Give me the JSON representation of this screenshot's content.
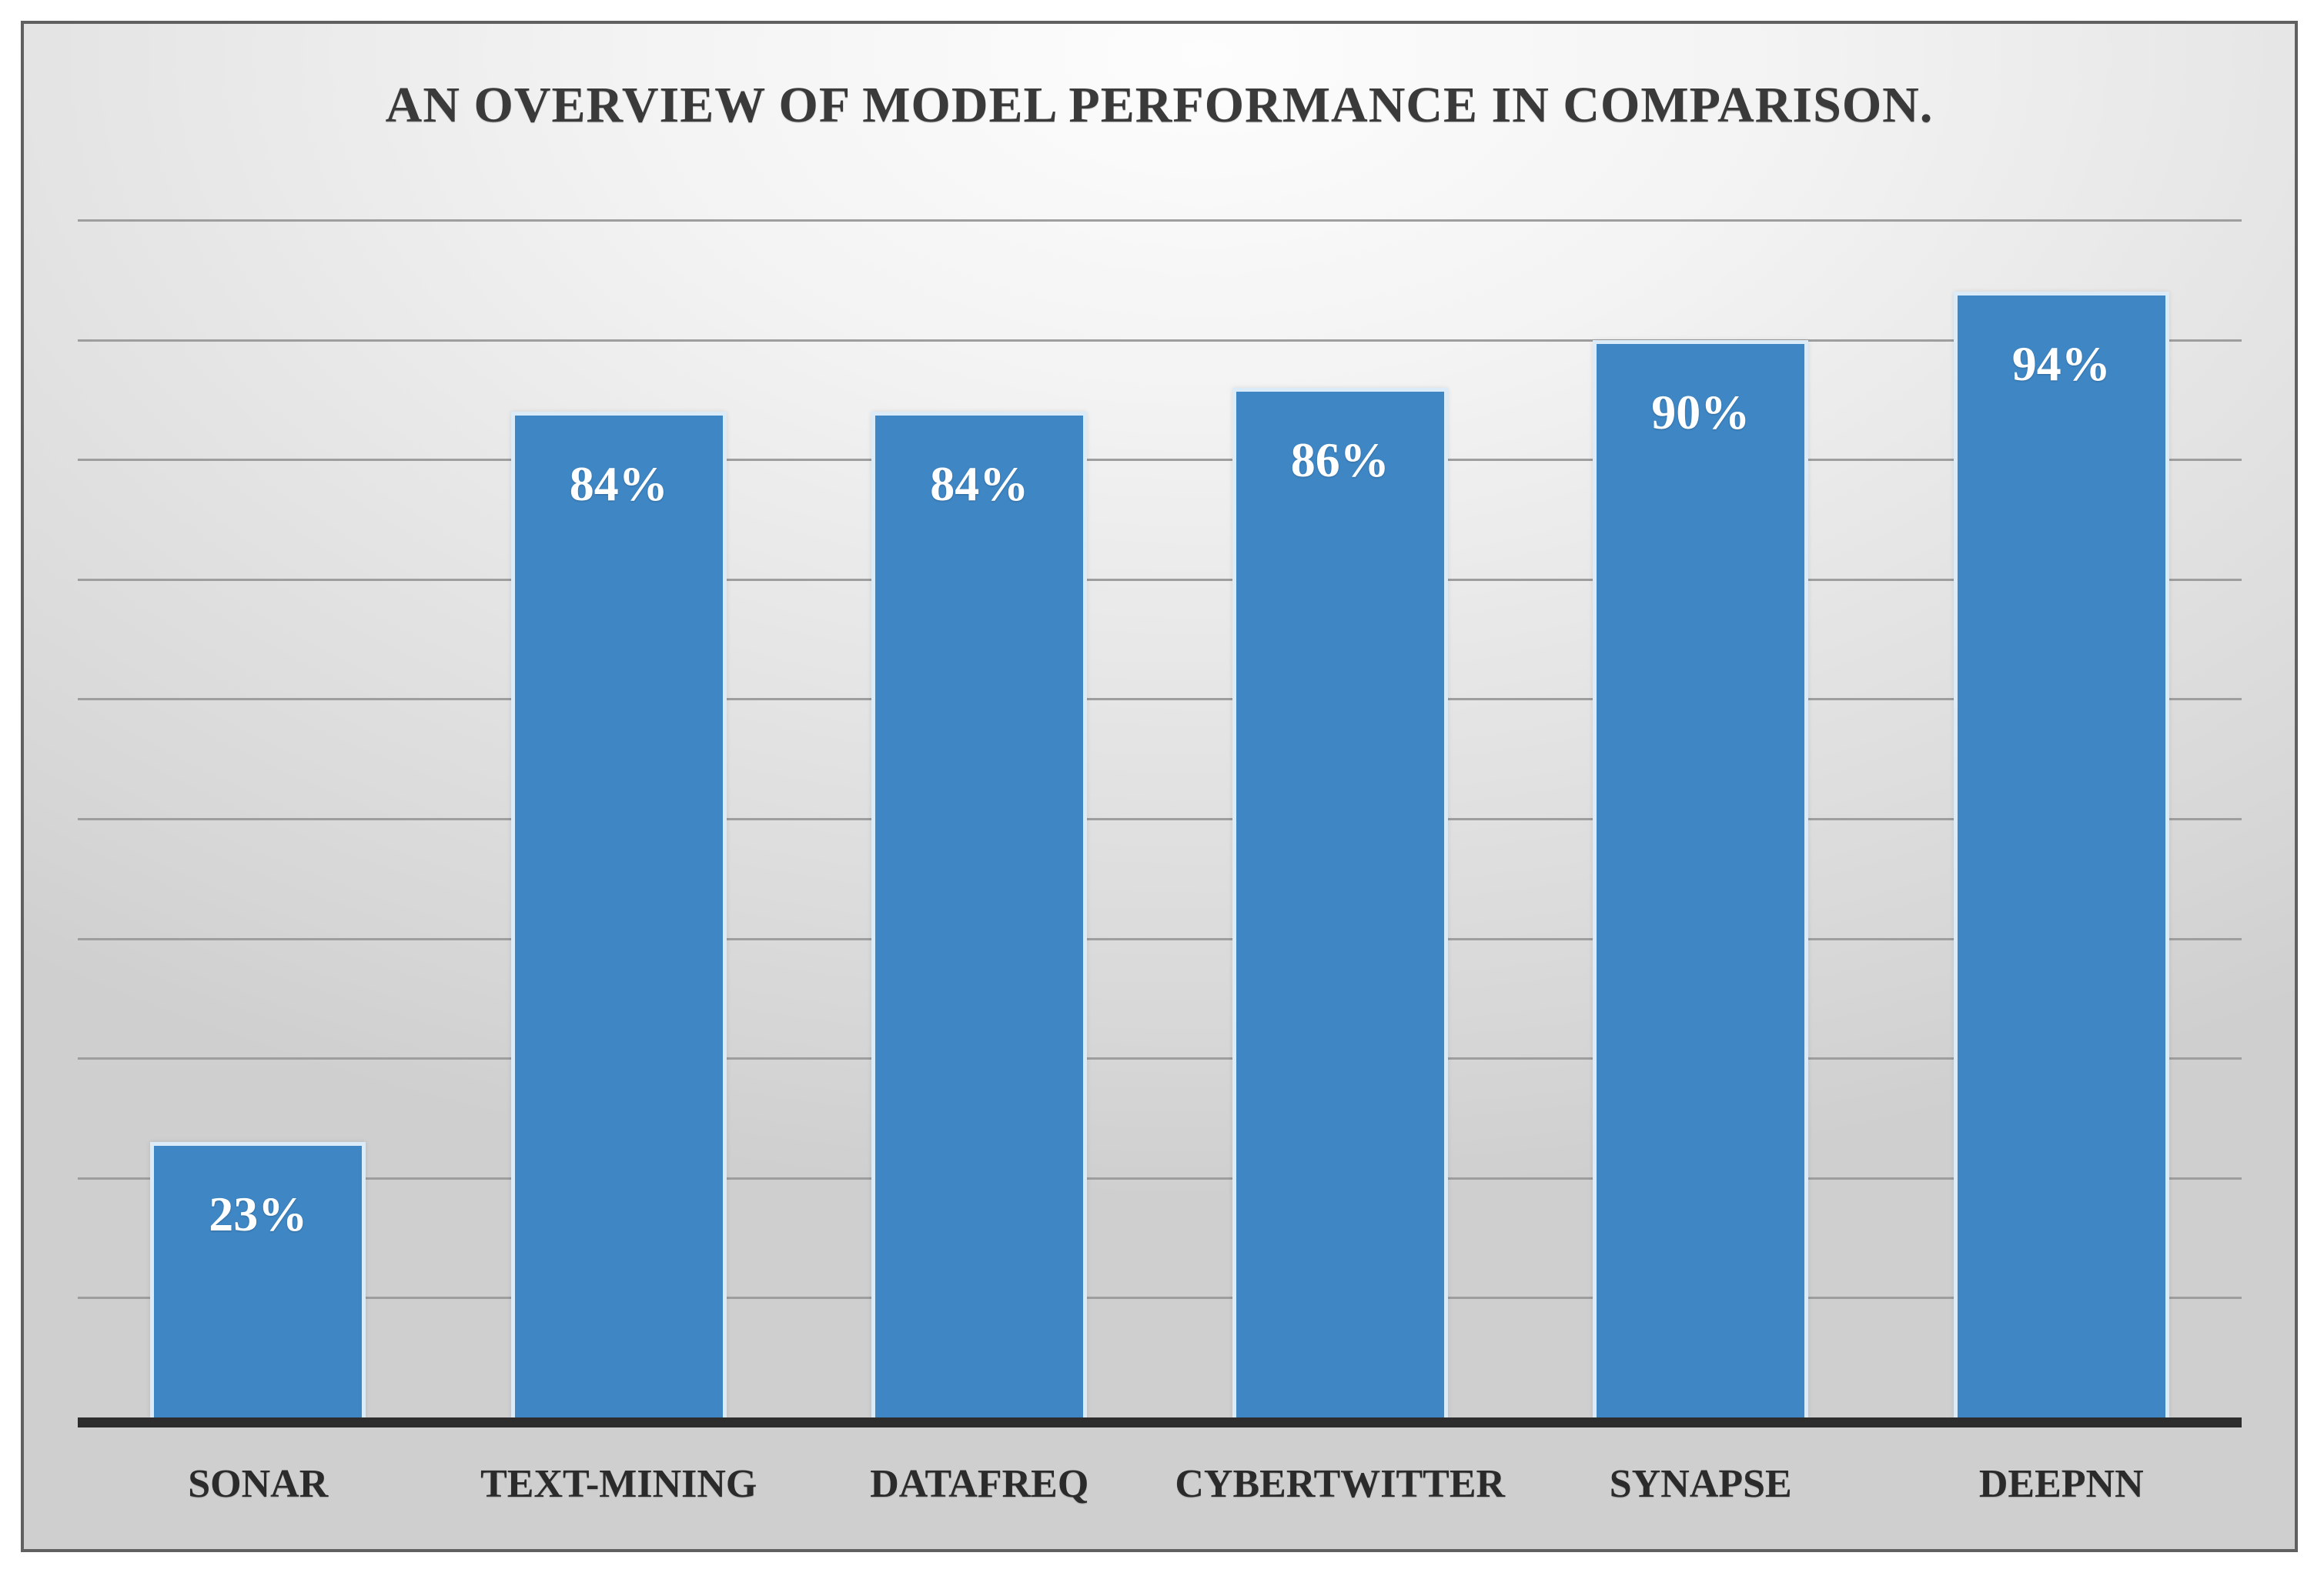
{
  "chart_data": {
    "type": "bar",
    "title": "AN OVERVIEW OF MODEL PERFORMANCE IN COMPARISON.",
    "categories": [
      "SONAR",
      "TEXT-MINING",
      "DATAFREQ",
      "CYBERTWITTER",
      "SYNAPSE",
      "DEEPNN"
    ],
    "values": [
      23,
      84,
      84,
      86,
      90,
      94
    ],
    "data_labels": [
      "23%",
      "84%",
      "84%",
      "86%",
      "90%",
      "94%"
    ],
    "xlabel": "",
    "ylabel": "",
    "ylim": [
      0,
      100
    ],
    "gridline_step": 10,
    "grid": true,
    "legend_position": "none",
    "y_tick_labels_visible": false,
    "colors": {
      "bar_fill": "#3e86c4",
      "bar_border": "#dcebf8",
      "gridline": "#9e9e9e",
      "axis_line": "#2d2d2d",
      "title_text": "#3a3a3a",
      "category_text": "#2b2b2b",
      "value_text": "#ffffff",
      "panel_background": "#d9d9d9",
      "page_background": "#ffffff",
      "frame_border": "#606060"
    }
  }
}
